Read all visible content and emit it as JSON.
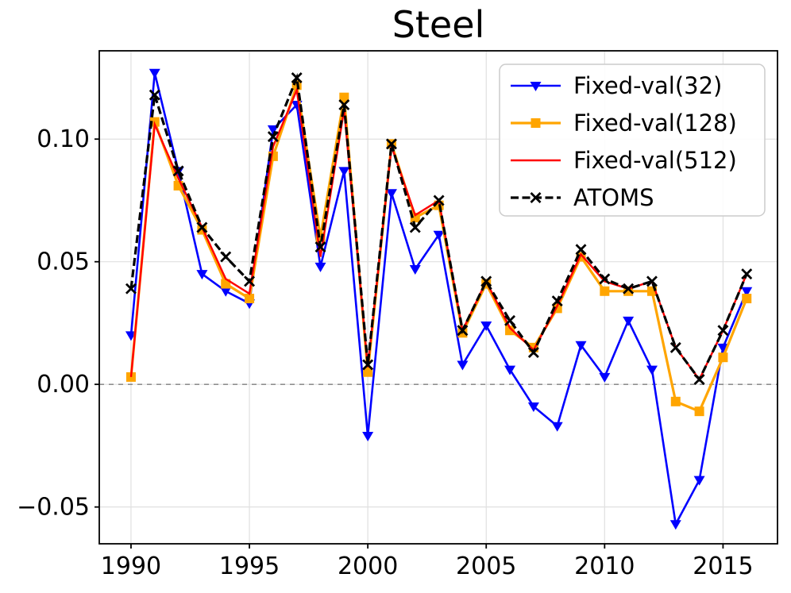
{
  "title": "Steel",
  "colors": {
    "series_blue": "#0000ff",
    "series_orange": "#ffa500",
    "series_red": "#ff0000",
    "series_black": "#000000",
    "zero_line": "#7f7f7f",
    "grid": "#e0e0e0",
    "legend_border": "#cccccc",
    "background": "#ffffff"
  },
  "chart_data": {
    "type": "line",
    "title": "Steel",
    "xlabel": "",
    "ylabel": "",
    "x": [
      1990,
      1991,
      1992,
      1993,
      1994,
      1995,
      1996,
      1997,
      1998,
      1999,
      2000,
      2001,
      2002,
      2003,
      2004,
      2005,
      2006,
      2007,
      2008,
      2009,
      2010,
      2011,
      2012,
      2013,
      2014,
      2015,
      2016
    ],
    "x_ticks": [
      1990,
      1995,
      2000,
      2005,
      2010,
      2015
    ],
    "x_tick_labels": [
      "1990",
      "1995",
      "2000",
      "2005",
      "2010",
      "2015"
    ],
    "y_ticks": [
      -0.05,
      0.0,
      0.05,
      0.1
    ],
    "y_tick_labels": [
      "−0.05",
      "0.00",
      "0.05",
      "0.10"
    ],
    "xlim": [
      1988.66,
      2017.3
    ],
    "ylim": [
      -0.065,
      0.136
    ],
    "grid": true,
    "zero_line_y": 0.0,
    "legend_position": "upper right",
    "series": [
      {
        "name": "Fixed-val(32)",
        "color": "#0000ff",
        "marker": "triangle-down",
        "line_style": "solid",
        "values": [
          0.02,
          0.127,
          0.087,
          0.045,
          0.038,
          0.033,
          0.104,
          0.114,
          0.048,
          0.087,
          -0.021,
          0.078,
          0.047,
          0.061,
          0.008,
          0.024,
          0.006,
          -0.009,
          -0.017,
          0.016,
          0.003,
          0.026,
          0.006,
          -0.057,
          -0.039,
          0.015,
          0.038
        ]
      },
      {
        "name": "Fixed-val(128)",
        "color": "#ffa500",
        "marker": "square",
        "line_style": "solid",
        "values": [
          0.003,
          0.107,
          0.081,
          0.063,
          0.041,
          0.035,
          0.093,
          0.122,
          0.06,
          0.117,
          0.005,
          0.098,
          0.068,
          0.073,
          0.021,
          0.041,
          0.022,
          0.015,
          0.031,
          0.052,
          0.038,
          0.038,
          0.038,
          -0.007,
          -0.011,
          0.011,
          0.035
        ]
      },
      {
        "name": "Fixed-val(512)",
        "color": "#ff0000",
        "marker": "none",
        "line_style": "solid",
        "values": [
          0.003,
          0.106,
          0.084,
          0.064,
          0.043,
          0.037,
          0.097,
          0.12,
          0.052,
          0.112,
          0.007,
          0.097,
          0.069,
          0.075,
          0.022,
          0.042,
          0.023,
          0.014,
          0.032,
          0.053,
          0.042,
          0.039,
          0.042,
          0.015,
          0.002,
          0.022,
          0.045
        ]
      },
      {
        "name": "ATOMS",
        "color": "#000000",
        "marker": "x",
        "line_style": "dashed",
        "values": [
          0.039,
          0.118,
          0.087,
          0.064,
          0.052,
          0.042,
          0.101,
          0.125,
          0.056,
          0.114,
          0.008,
          0.098,
          0.064,
          0.075,
          0.022,
          0.042,
          0.026,
          0.013,
          0.034,
          0.055,
          0.043,
          0.039,
          0.042,
          0.015,
          0.002,
          0.022,
          0.045
        ]
      }
    ]
  }
}
